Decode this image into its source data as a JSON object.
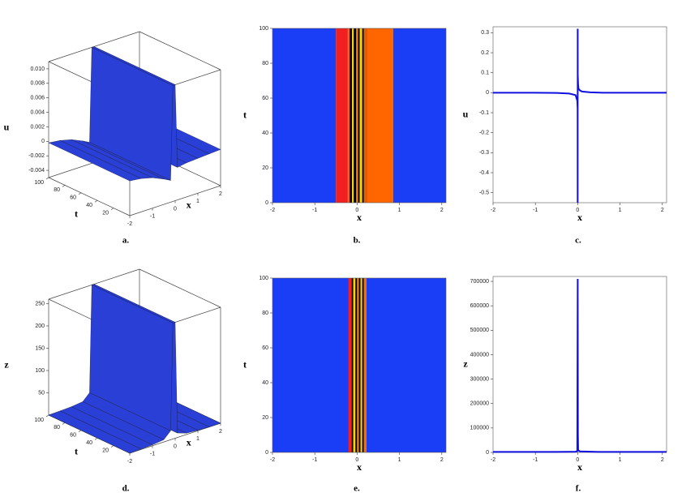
{
  "chart_data": [
    {
      "type": "surface3d",
      "caption": "a.",
      "xlabel": "x",
      "ylabel": "t",
      "zlabel": "u",
      "xlim": [
        -2,
        2
      ],
      "ylim": [
        0,
        100
      ],
      "zlim": [
        -0.005,
        0.011
      ],
      "xticks": [
        -2,
        -1,
        0,
        1,
        2
      ],
      "yticks": [
        20,
        40,
        60,
        80,
        100
      ],
      "zticks": [
        -0.004,
        -0.002,
        0,
        0.002,
        0.004,
        0.006,
        0.008,
        {
          "value": 0.01,
          "label": "0.010"
        }
      ],
      "x": [
        -2,
        -1.5,
        -1,
        -0.5,
        -0.2,
        -0.1,
        0,
        0.1,
        0.5,
        1,
        1.5,
        2
      ],
      "values": [
        -0.0002,
        -0.0004,
        -0.0008,
        -0.0015,
        -0.002,
        0.011,
        0.011,
        -0.0005,
        -0.0003,
        -0.0002,
        -0.0001,
        0
      ],
      "color": "#2a3fd6"
    },
    {
      "type": "density",
      "caption": "b.",
      "xlabel": "x",
      "ylabel": "t",
      "xlim": [
        -2,
        2.1
      ],
      "ylim": [
        0,
        100
      ],
      "xticks": [
        -2,
        -1,
        0,
        1,
        2
      ],
      "yticks": [
        0,
        20,
        40,
        60,
        80,
        100
      ],
      "bands": [
        {
          "x0": -2,
          "x1": -0.5,
          "color": "#1a3ef5"
        },
        {
          "x0": -0.5,
          "x1": -0.22,
          "color": "#f02020"
        },
        {
          "x0": -0.22,
          "x1": -0.18,
          "color": "#ff6600"
        },
        {
          "x0": -0.18,
          "x1": -0.12,
          "color": "#000000"
        },
        {
          "x0": -0.12,
          "x1": -0.08,
          "color": "#ffd000"
        },
        {
          "x0": -0.08,
          "x1": -0.02,
          "color": "#000000"
        },
        {
          "x0": -0.02,
          "x1": 0.02,
          "color": "#ff8800"
        },
        {
          "x0": 0.02,
          "x1": 0.06,
          "color": "#000000"
        },
        {
          "x0": 0.06,
          "x1": 0.12,
          "color": "#ffd000"
        },
        {
          "x0": 0.12,
          "x1": 0.16,
          "color": "#000000"
        },
        {
          "x0": 0.16,
          "x1": 0.25,
          "color": "#e85a00"
        },
        {
          "x0": 0.25,
          "x1": 0.85,
          "color": "#ff6600"
        },
        {
          "x0": 0.85,
          "x1": 2.1,
          "color": "#1a3ef5"
        }
      ]
    },
    {
      "type": "line",
      "caption": "c.",
      "xlabel": "x",
      "ylabel": "u",
      "xlim": [
        -2,
        2.1
      ],
      "ylim": [
        -0.55,
        0.33
      ],
      "xticks": [
        -2,
        -1,
        0,
        1,
        2
      ],
      "yticks": [
        -0.5,
        -0.4,
        -0.3,
        -0.2,
        -0.1,
        0,
        0.1,
        0.2,
        0.3
      ],
      "x": [
        -2,
        -1,
        -0.5,
        -0.2,
        -0.05,
        -0.01,
        -0.002,
        -0.001,
        0,
        0.001,
        0.01,
        0.02,
        0.05,
        0.1,
        0.3,
        0.6,
        1,
        2,
        2.1
      ],
      "values": [
        0,
        0,
        -0.001,
        -0.004,
        -0.012,
        -0.04,
        -0.08,
        -0.55,
        0.32,
        0.09,
        0.04,
        0.02,
        0.012,
        0.006,
        0.002,
        0,
        0,
        0,
        0
      ],
      "color": "#1010e0"
    },
    {
      "type": "surface3d",
      "caption": "d.",
      "xlabel": "x",
      "ylabel": "t",
      "zlabel": "z",
      "xlim": [
        -2,
        2
      ],
      "ylim": [
        0,
        100
      ],
      "zlim": [
        0,
        260
      ],
      "xticks": [
        -2,
        -1,
        0,
        1,
        2
      ],
      "yticks": [
        20,
        40,
        60,
        80,
        100
      ],
      "zticks": [
        50,
        100,
        150,
        200,
        250
      ],
      "x": [
        -2,
        -1.5,
        -1,
        -0.5,
        -0.2,
        -0.1,
        0,
        0.1,
        0.5,
        1,
        1.5,
        2
      ],
      "values": [
        0,
        1,
        2,
        5,
        20,
        260,
        260,
        10,
        3,
        1,
        0,
        0
      ],
      "color": "#2a3fd6"
    },
    {
      "type": "density",
      "caption": "e.",
      "xlabel": "x",
      "ylabel": "t",
      "xlim": [
        -2,
        2.1
      ],
      "ylim": [
        0,
        100
      ],
      "xticks": [
        -2,
        -1,
        0,
        1,
        2
      ],
      "yticks": [
        0,
        20,
        40,
        60,
        80,
        100
      ],
      "bands": [
        {
          "x0": -2,
          "x1": -0.2,
          "color": "#1a3ef5"
        },
        {
          "x0": -0.2,
          "x1": -0.13,
          "color": "#f02020"
        },
        {
          "x0": -0.13,
          "x1": -0.09,
          "color": "#000000"
        },
        {
          "x0": -0.09,
          "x1": -0.04,
          "color": "#ffd000"
        },
        {
          "x0": -0.04,
          "x1": 0,
          "color": "#000000"
        },
        {
          "x0": 0,
          "x1": 0.04,
          "color": "#ff8800"
        },
        {
          "x0": 0.04,
          "x1": 0.08,
          "color": "#000000"
        },
        {
          "x0": 0.08,
          "x1": 0.12,
          "color": "#ffd000"
        },
        {
          "x0": 0.12,
          "x1": 0.16,
          "color": "#000000"
        },
        {
          "x0": 0.16,
          "x1": 0.22,
          "color": "#ff6600"
        },
        {
          "x0": 0.22,
          "x1": 2.1,
          "color": "#1a3ef5"
        }
      ]
    },
    {
      "type": "line",
      "caption": "f.",
      "xlabel": "x",
      "ylabel": "z",
      "xlim": [
        -2,
        2.1
      ],
      "ylim": [
        0,
        720000
      ],
      "xticks": [
        -2,
        -1,
        0,
        1,
        2
      ],
      "yticks": [
        0,
        100000,
        200000,
        300000,
        400000,
        500000,
        600000,
        700000
      ],
      "x": [
        -2,
        -1,
        -0.5,
        -0.05,
        -0.01,
        0,
        0.005,
        0.01,
        0.05,
        0.5,
        1,
        2,
        2.1
      ],
      "values": [
        2000,
        2000,
        2000,
        3000,
        5000,
        710000,
        80000,
        10000,
        4000,
        2000,
        2000,
        2000,
        2000
      ],
      "color": "#1010e0"
    }
  ]
}
